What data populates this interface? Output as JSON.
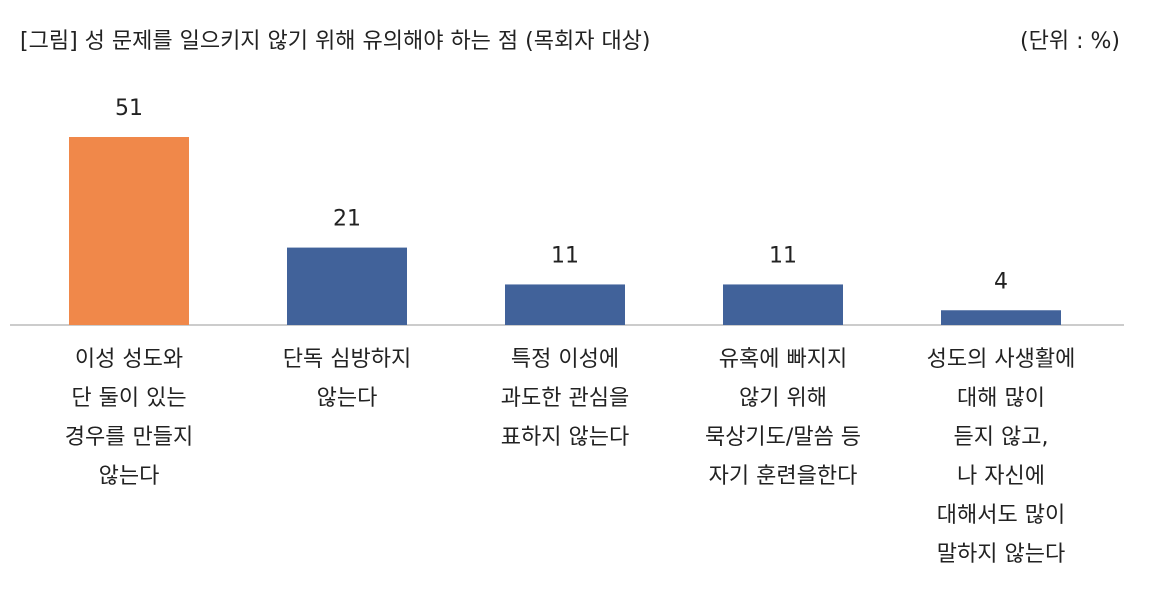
{
  "chart_data": {
    "type": "bar",
    "title": "[그림] 성 문제를 일으키지 않기 위해 유의해야 하는 점 (목회자 대상)",
    "unit": "(단위 : %)",
    "categories": [
      [
        "이성 성도와",
        "단 둘이 있는",
        "경우를 만들지",
        "않는다"
      ],
      [
        "단독 심방하지",
        "않는다"
      ],
      [
        "특정 이성에",
        "과도한 관심을",
        "표하지 않는다"
      ],
      [
        "유혹에 빠지지",
        "않기 위해",
        "묵상기도/말씀 등",
        "자기 훈련을한다"
      ],
      [
        "성도의 사생활에",
        "대해 많이",
        "듣지 않고,",
        "나 자신에",
        "대해서도 많이",
        "말하지 않는다"
      ]
    ],
    "values": [
      51,
      21,
      11,
      11,
      4
    ],
    "colors": [
      "#f0884a",
      "#41629a",
      "#41629a",
      "#41629a",
      "#41629a"
    ]
  }
}
